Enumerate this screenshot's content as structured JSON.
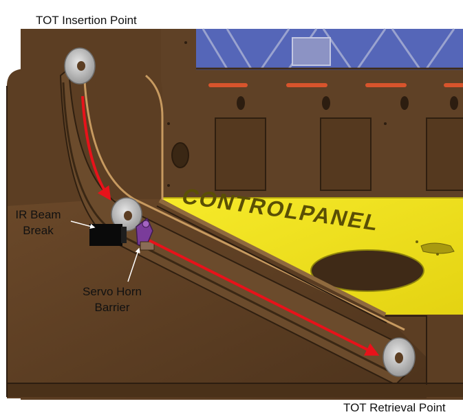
{
  "labels": {
    "insertion_point": "TOT Insertion Point",
    "ir_beam_line1": "IR Beam",
    "ir_beam_line2": "Break",
    "servo_line1": "Servo Horn",
    "servo_line2": "Barrier",
    "retrieval_point": "TOT Retrieval Point"
  },
  "embossed_text": "CONTROLPANEL",
  "colors": {
    "wood": "#5c3e23",
    "wood_dark": "#3f2a17",
    "wood_light": "#7a5533",
    "yellow_panel": "#f2e51b",
    "blue_window": "#5566b8",
    "red_slots": "#d8542c",
    "flow_arrow": "#e8121a",
    "ir_sensor": "#0a0a0a",
    "servo_horn": "#7a3c9a",
    "washer": "#c8c8c8"
  },
  "icons": {
    "ir_sensor": "ir-sensor-block-icon",
    "washer": "token-washer-icon",
    "servo": "servo-horn-icon"
  }
}
